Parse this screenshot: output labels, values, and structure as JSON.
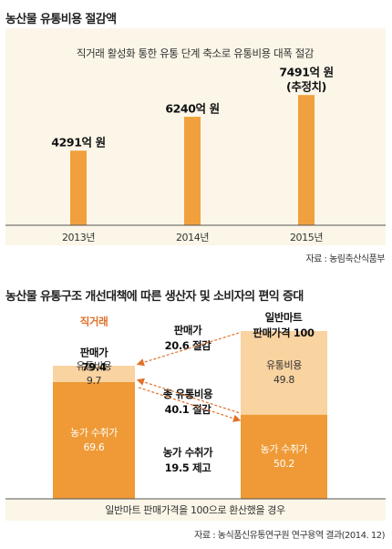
{
  "figure1": {
    "heading": "농산물 유통비용 절감액",
    "source": "자료 : 농림축산식품부"
  },
  "figure2": {
    "heading": "농산물 유통구조 개선대책에 따른 생산자 및 소비자의 편익 증대",
    "source": "자료 : 농식품신유통연구원 연구용역 결과(2014. 12)"
  },
  "chart_data": [
    {
      "type": "bar",
      "subtitle": "직거래 활성화 통한 유통 단계 축소로 유통비용 대폭 절감",
      "categories": [
        "2013년",
        "2014년",
        "2015년"
      ],
      "values": [
        4291,
        6240,
        7491
      ],
      "data_labels": [
        "4291억 원",
        "6240억 원",
        "7491억 원"
      ],
      "annotations": [
        "",
        "",
        "(추정치)"
      ],
      "unit": "억 원",
      "ylim": [
        0,
        8500
      ],
      "grid": false,
      "bar_color": "#f0a03c",
      "background": "#fbf6e8"
    },
    {
      "type": "bar",
      "stacked": true,
      "categories": [
        "직거래",
        "일반마트"
      ],
      "category_headers": [
        "직거래",
        "일반마트\n판매가격 100"
      ],
      "price_labels": [
        "판매가\n79.4",
        ""
      ],
      "series": [
        {
          "name": "농가 수취가",
          "values": [
            69.6,
            50.2
          ],
          "labels": [
            "농가 수취가\n69.6",
            "농가 수취가\n50.2"
          ],
          "color": "#ef9a36"
        },
        {
          "name": "유통비용",
          "values": [
            9.7,
            49.8
          ],
          "labels": [
            "유통비용\n9.7",
            "유통비용\n49.8"
          ],
          "color": "#f9d3a0"
        }
      ],
      "ylim": [
        0,
        100
      ],
      "comparisons": [
        {
          "text": "판매가\n20.6 절감"
        },
        {
          "text": "총 유통비용\n40.1 절감"
        },
        {
          "text": "농가 수취가\n19.5 제고"
        }
      ],
      "footnote": "일반마트 판매가격을 100으로 환산했을 경우",
      "header_color": "#e0712a",
      "footer_background": "#fbf6e8",
      "arrow_color": "#e0712a"
    }
  ]
}
